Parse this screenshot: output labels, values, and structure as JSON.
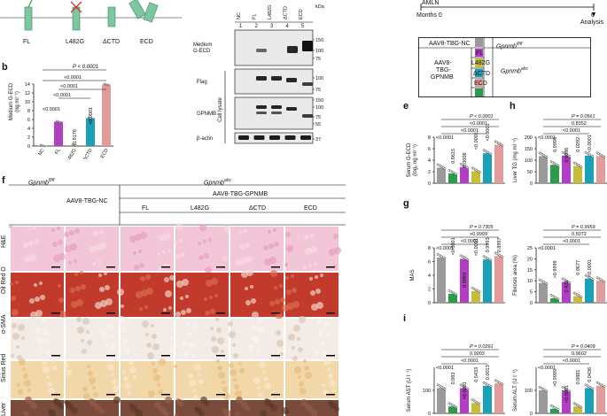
{
  "panels": {
    "a": {
      "labels": [
        "FL",
        "L482G",
        "ΔCTD",
        "ECD"
      ]
    },
    "b": {
      "letter": "b",
      "ylabel": "Medium G-ECD",
      "yunit": "(ng ml⁻¹)",
      "ticks": [
        "0",
        "2",
        "4",
        "6",
        "8",
        "10",
        "12",
        "14"
      ],
      "cats": [
        "NC",
        "FL",
        "L482G",
        "ΔCTD",
        "ECD"
      ],
      "pvals": {
        "top": "P < 0.0001",
        "p1": "<0.0001",
        "p2": "<0.0001",
        "p3": "<0.0001",
        "p4": "<0.0001",
        "p5": "0.9176",
        "p6": "<0.0001"
      },
      "colors": [
        "#9a9a9a",
        "#b23fc3",
        "#c8bd3b",
        "#1aa0b7",
        "#e29a9a"
      ]
    },
    "blot": {
      "lanes": [
        "NC",
        "FL",
        "L482G",
        "ΔCTD",
        "ECD"
      ],
      "lanenums": [
        "1",
        "2",
        "3",
        "4",
        "5"
      ],
      "kda": "kDa",
      "rows": [
        {
          "label": "Medium G-ECD",
          "marks": [
            "150",
            "100",
            "75"
          ]
        },
        {
          "label": "Flag",
          "marks": [
            "100",
            "75"
          ]
        },
        {
          "label": "GPNMB",
          "marks": [
            "150",
            "100",
            "75",
            "55"
          ]
        },
        {
          "label": "β-actin",
          "marks": [
            "37"
          ]
        }
      ],
      "celllysate": "Cell lysate"
    },
    "c": {
      "amln": "AMLN",
      "months0": "Months 0",
      "six": "6",
      "analysis": "Analysis",
      "nc": "AAV8-TBG-NC",
      "gp_fl": "Gpnmbfl/fl",
      "aav": "AAV8-TBG-GPNMB",
      "aavline1": "AAV8-",
      "aavline2": "TBG-",
      "aavline3": "GPNMB",
      "gp_ahc": "Gpnmbahc",
      "rows": [
        "FL",
        "L482G",
        "ΔCTD",
        "ECD"
      ],
      "swatch": [
        "#9a9a9a",
        "#b23fc3",
        "#c8bd3b",
        "#1aa0b7",
        "#e29a9a",
        "#2a9d4b"
      ]
    },
    "e": {
      "letter": "e",
      "ylabel": "Serum G-ECD",
      "yunit": "(log₂ ng ml⁻¹)",
      "ticks": [
        "0",
        "2",
        "4",
        "6",
        "8"
      ],
      "pvals": [
        "P < 0.0001",
        "<0.0001",
        "<0.0001",
        "<0.0001",
        "0.8615",
        "0.0008",
        "<0.0001",
        "<0.0001"
      ]
    },
    "h": {
      "letter": "h",
      "ylabel": "Liver TG (mg ml⁻¹)",
      "ticks": [
        "0",
        "50",
        "100",
        "150",
        "200"
      ],
      "pvals": [
        "P = 0.0561",
        "0.8352",
        "<0.0001",
        "<0.0001",
        "0.9998",
        "0.6886",
        "0.0292",
        "<0.0001"
      ]
    },
    "f": {
      "letter": "f",
      "gp_fl": "Gpnmbfl/fl",
      "gp_ahc": "Gpnmbahc",
      "nc": "AAV8-TBG-NC",
      "gpnmb": "AAV8-TBG-GPNMB",
      "cols": [
        "FL",
        "L482G",
        "ΔCTD",
        "ECD"
      ],
      "rows": [
        "H&E",
        "Oil Red O",
        "α-SMA",
        "Sirius Red",
        "Liver"
      ]
    },
    "g": {
      "letter": "g",
      "ylabel": "MAS",
      "ticks": [
        "0",
        "2",
        "4",
        "6",
        "8"
      ],
      "pvals": [
        "P = 0.7305",
        ">0.9999",
        "<0.0001",
        "<0.0001",
        "<0.0001",
        "0.9993",
        "<0.0001",
        "0.9993",
        "0.8997"
      ]
    },
    "g2": {
      "ylabel": "Fibrosis area (%)",
      "ticks": [
        "0",
        "5",
        "10",
        "15",
        "20",
        "25"
      ],
      "pvals": [
        "P = 0.9959",
        "0.5072",
        "<0.0001",
        "<0.0001",
        ">0.9999",
        "0.425",
        "0.9677",
        "<0.0001"
      ]
    },
    "i": {
      "letter": "i",
      "ylabel": "Serum AST (U l⁻¹)",
      "ticks": [
        "0",
        "100"
      ],
      "pvals": [
        "P = 0.0291",
        "0.9903",
        "<0.0001",
        "<0.0001",
        "0.883",
        "<0.0001",
        "0.5433",
        "0.0013"
      ]
    },
    "i2": {
      "ylabel": "Serum ALT (U l⁻¹)",
      "ticks": [
        "0",
        "100"
      ],
      "pvals": [
        "P = 0.0409",
        "0.9602",
        "<0.0001",
        "<0.0001",
        ">0.9999",
        "<0.0001",
        "0.8881",
        "0.0436"
      ]
    },
    "letters": {
      "b": "b"
    }
  },
  "chart_data": [
    {
      "type": "bar",
      "categories": [
        "NC",
        "FL",
        "L482G",
        "ΔCTD",
        "ECD"
      ],
      "values": [
        0.1,
        5.5,
        0.2,
        6.3,
        13.9
      ],
      "ylabel": "Medium G-ECD (ng ml⁻¹)",
      "ylim": [
        0,
        14
      ]
    },
    {
      "type": "bar",
      "categories": [
        "Gpnmbfl/fl NC",
        "Gpnmbahc NC",
        "FL",
        "L482G",
        "ΔCTD",
        "ECD"
      ],
      "values": [
        2.7,
        1.7,
        2.8,
        2.1,
        5.2,
        6.7
      ],
      "ylabel": "Serum G-ECD (log₂ ng ml⁻¹)",
      "ylim": [
        0,
        8
      ]
    },
    {
      "type": "bar",
      "categories": [
        "Gpnmbfl/fl NC",
        "Gpnmbahc NC",
        "FL",
        "L482G",
        "ΔCTD",
        "ECD"
      ],
      "values": [
        118,
        80,
        120,
        75,
        120,
        118
      ],
      "ylabel": "Liver TG (mg ml⁻¹)",
      "ylim": [
        0,
        200
      ]
    },
    {
      "type": "bar",
      "categories": [
        "Gpnmbfl/fl NC",
        "Gpnmbahc NC",
        "FL",
        "L482G",
        "ΔCTD",
        "ECD"
      ],
      "values": [
        6.6,
        1.3,
        6.4,
        1.7,
        6.3,
        6.8
      ],
      "ylabel": "MAS",
      "ylim": [
        0,
        8
      ]
    },
    {
      "type": "bar",
      "categories": [
        "Gpnmbfl/fl NC",
        "Gpnmbahc NC",
        "FL",
        "L482G",
        "ΔCTD",
        "ECD"
      ],
      "values": [
        9,
        2,
        9.5,
        3,
        11,
        10
      ],
      "ylabel": "Fibrosis area (%)",
      "ylim": [
        0,
        25
      ]
    },
    {
      "type": "bar",
      "categories": [
        "Gpnmbfl/fl NC",
        "Gpnmbahc NC",
        "FL",
        "L482G",
        "ΔCTD",
        "ECD"
      ],
      "values": [
        110,
        30,
        110,
        45,
        120,
        130
      ],
      "ylabel": "Serum AST (U l⁻¹)"
    },
    {
      "type": "bar",
      "categories": [
        "Gpnmbfl/fl NC",
        "Gpnmbahc NC",
        "FL",
        "L482G",
        "ΔCTD",
        "ECD"
      ],
      "values": [
        100,
        20,
        100,
        30,
        110,
        120
      ],
      "ylabel": "Serum ALT (U l⁻¹)"
    }
  ]
}
